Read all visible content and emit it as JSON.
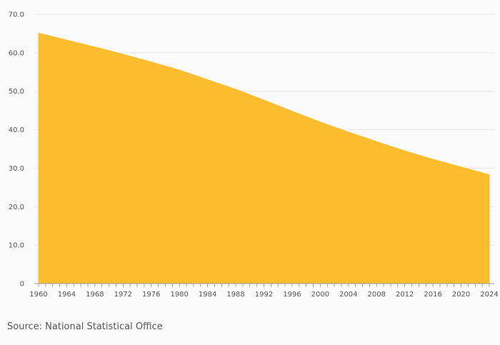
{
  "chart_data": {
    "type": "area",
    "title": "",
    "xlabel": "",
    "ylabel": "",
    "x": [
      1960,
      1964,
      1968,
      1972,
      1976,
      1980,
      1984,
      1988,
      1992,
      1996,
      2000,
      2004,
      2008,
      2012,
      2016,
      2020,
      2024
    ],
    "series": [
      {
        "values": [
          65.1,
          63.3,
          61.5,
          59.6,
          57.6,
          55.5,
          53.0,
          50.5,
          47.7,
          44.8,
          42.0,
          39.4,
          36.9,
          34.5,
          32.3,
          30.3,
          28.3
        ]
      }
    ],
    "xlim": [
      1960,
      2024
    ],
    "ylim": [
      0,
      70
    ],
    "yticks": [
      "0",
      "10.0",
      "20.0",
      "30.0",
      "40.0",
      "50.0",
      "60.0",
      "70.0"
    ],
    "xticks": [
      "1960",
      "1964",
      "1968",
      "1972",
      "1976",
      "1980",
      "1984",
      "1988",
      "1992",
      "1996",
      "2000",
      "2004",
      "2008",
      "2012",
      "2016",
      "2020",
      "2024"
    ],
    "grid": true,
    "legend": "none",
    "colors": {
      "fill": "#fbbd2e",
      "grid": "#e6e6e6",
      "axis": "#999999"
    }
  },
  "source": "Source: National Statistical Office"
}
